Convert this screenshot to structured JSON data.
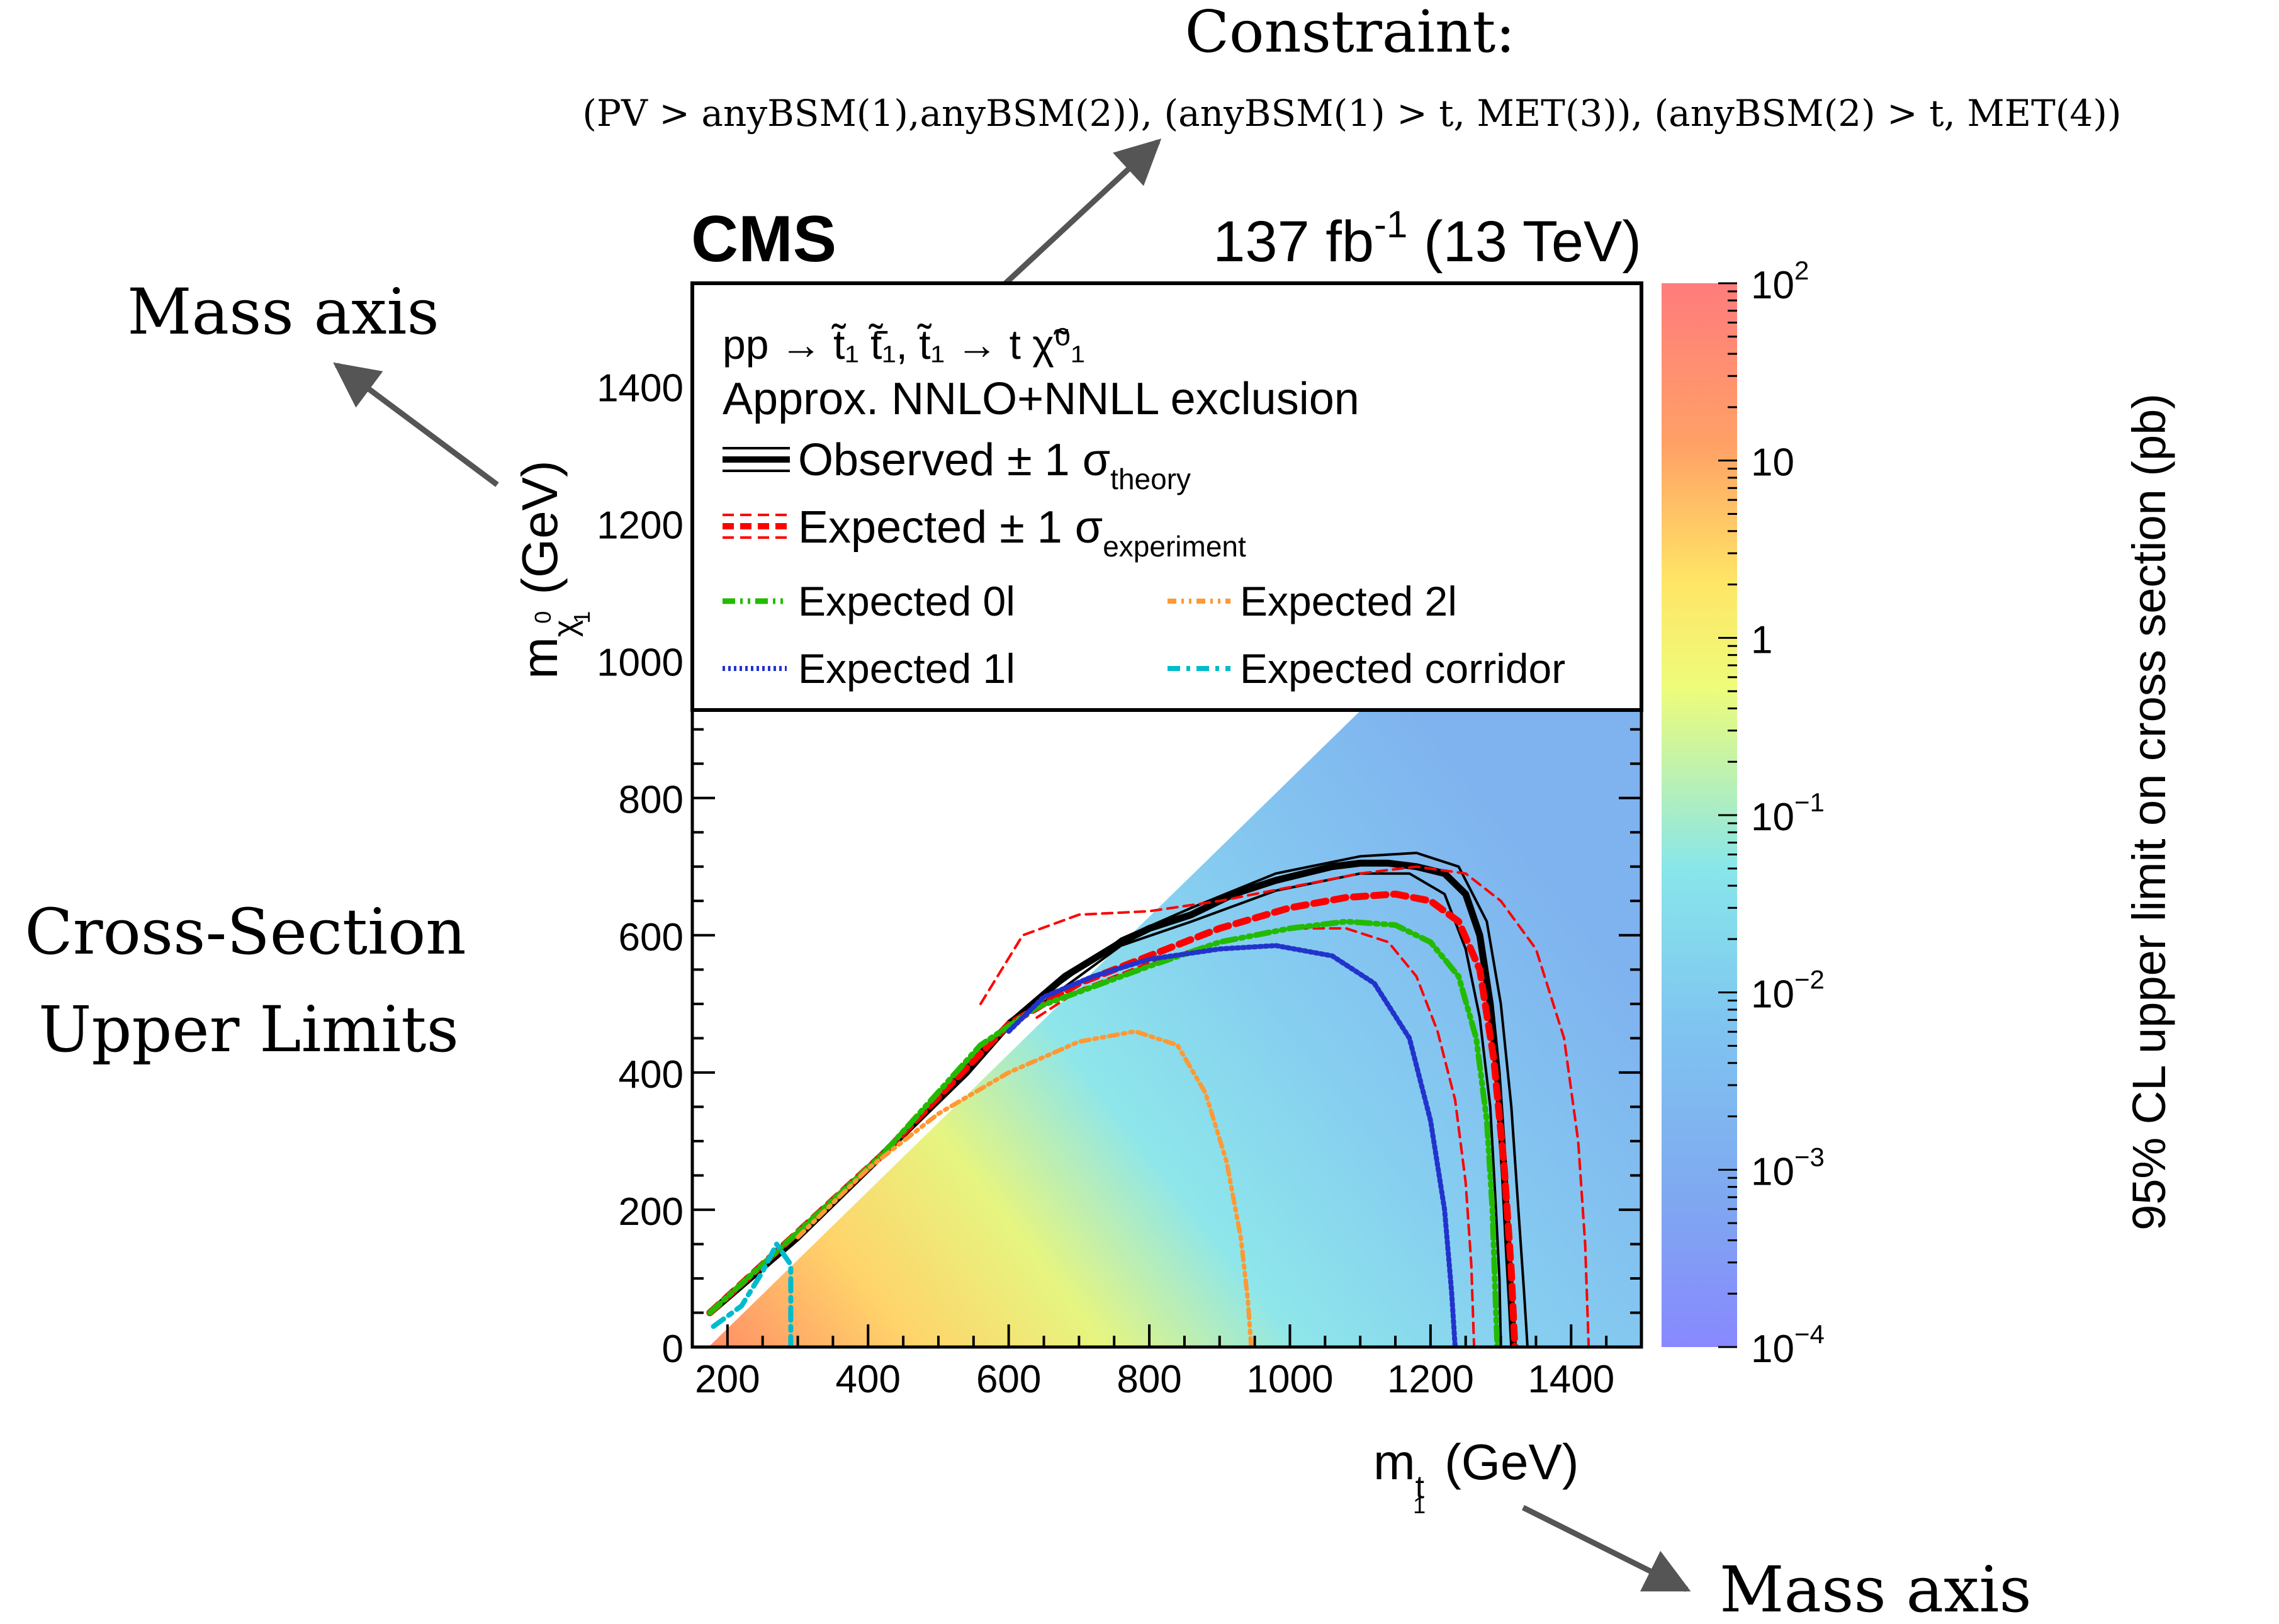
{
  "annotations": {
    "constraint_title": "Constraint:",
    "constraint_text": "(PV > anyBSM(1),anyBSM(2)), (anyBSM(1) > t, MET(3)), (anyBSM(2) > t, MET(4))",
    "mass_axis_y": "Mass axis",
    "mass_axis_x": "Mass axis",
    "cross_section_line1": "Cross-Section",
    "cross_section_line2": "Upper Limits"
  },
  "colors": {
    "arrow": "#555555",
    "observed": "#000000",
    "expected": "#ff0000",
    "expected_0l": "#22bb00",
    "expected_1l": "#2233cc",
    "expected_2l": "#ff9933",
    "expected_corridor": "#00bbcc"
  },
  "chart_data": {
    "type": "heatmap",
    "header_left": "CMS",
    "lumi_value": "137 fb",
    "lumi_exp": "-1",
    "lumi_energy": " (13 TeV)",
    "xlabel_main": "m",
    "xlabel_sub": "t",
    "xlabel_sub_index": "1",
    "xlabel_unit": "(GeV)",
    "ylabel_main": "m",
    "ylabel_sub": "χ",
    "ylabel_sub_sup": "0",
    "ylabel_sub_index": "1",
    "ylabel_unit": "(GeV)",
    "zlabel": "95% CL upper limit on cross section (pb)",
    "xlim": [
      150,
      1500
    ],
    "ylim": [
      0,
      1550
    ],
    "zlim": [
      0.0001,
      100
    ],
    "z_scale": "log",
    "xticks": [
      200,
      400,
      600,
      800,
      1000,
      1200,
      1400
    ],
    "yticks": [
      0,
      200,
      400,
      600,
      800,
      1000,
      1200,
      1400
    ],
    "zticks": [
      {
        "base": "10",
        "exp": "2",
        "value": 100
      },
      {
        "base": "10",
        "exp": "",
        "value": 10
      },
      {
        "base": "1",
        "exp": "",
        "value": 1
      },
      {
        "base": "10",
        "exp": "−1",
        "value": 0.1
      },
      {
        "base": "10",
        "exp": "−2",
        "value": 0.01
      },
      {
        "base": "10",
        "exp": "−3",
        "value": 0.001
      },
      {
        "base": "10",
        "exp": "−4",
        "value": 0.0001
      }
    ],
    "legend": {
      "process": "pp → t̃₁ t̃̄₁, t̃₁ → t χ̃⁰₁",
      "exclusion": "Approx. NNLO+NNLL exclusion",
      "observed_label": "Observed ± 1 σ",
      "observed_sub": "theory",
      "expected_label": "Expected ± 1 σ",
      "expected_sub": "experiment",
      "exp_0l": "Expected 0l",
      "exp_2l": "Expected 2l",
      "exp_1l": "Expected 1l",
      "exp_corridor": "Expected corridor",
      "placement": "top"
    },
    "contours": {
      "observed": {
        "x": [
          175,
          300,
          420,
          540,
          600,
          680,
          760,
          800,
          860,
          920,
          980,
          1020,
          1060,
          1100,
          1140,
          1180,
          1220,
          1250,
          1270,
          1285,
          1295,
          1305,
          1310,
          1315,
          1318
        ],
        "y": [
          50,
          160,
          280,
          400,
          470,
          540,
          590,
          610,
          630,
          660,
          680,
          690,
          700,
          705,
          705,
          700,
          690,
          660,
          600,
          500,
          400,
          250,
          150,
          60,
          0
        ]
      },
      "observed_up": {
        "x": [
          175,
          420,
          600,
          760,
          860,
          980,
          1100,
          1180,
          1240,
          1280,
          1300,
          1315,
          1325,
          1333,
          1338
        ],
        "y": [
          50,
          280,
          475,
          595,
          640,
          690,
          715,
          720,
          700,
          620,
          500,
          350,
          200,
          80,
          0
        ]
      },
      "observed_down": {
        "x": [
          175,
          420,
          600,
          760,
          860,
          980,
          1100,
          1170,
          1220,
          1250,
          1270,
          1285,
          1292,
          1298,
          1300
        ],
        "y": [
          50,
          280,
          465,
          585,
          620,
          665,
          690,
          690,
          660,
          580,
          480,
          350,
          220,
          100,
          0
        ]
      },
      "expected": {
        "x": [
          175,
          420,
          600,
          700,
          800,
          900,
          1000,
          1080,
          1150,
          1200,
          1240,
          1270,
          1290,
          1305,
          1315,
          1320
        ],
        "y": [
          50,
          280,
          470,
          530,
          570,
          610,
          640,
          655,
          660,
          650,
          620,
          550,
          420,
          260,
          110,
          0
        ]
      },
      "expected_up": {
        "x": [
          560,
          620,
          700,
          800,
          900,
          1000,
          1100,
          1180,
          1250,
          1300,
          1350,
          1390,
          1410,
          1420,
          1425
        ],
        "y": [
          500,
          600,
          630,
          635,
          650,
          670,
          690,
          700,
          690,
          650,
          580,
          450,
          300,
          150,
          0
        ]
      },
      "expected_down": {
        "x": [
          640,
          700,
          800,
          900,
          1000,
          1080,
          1140,
          1180,
          1210,
          1235,
          1250,
          1258,
          1262
        ],
        "y": [
          480,
          520,
          560,
          590,
          610,
          610,
          590,
          540,
          460,
          360,
          240,
          120,
          0
        ]
      },
      "exp_0l": {
        "x": [
          175,
          420,
          560,
          640,
          720,
          800,
          900,
          1000,
          1080,
          1150,
          1200,
          1240,
          1265,
          1280,
          1288,
          1292,
          1295
        ],
        "y": [
          50,
          280,
          440,
          495,
          525,
          555,
          590,
          610,
          620,
          615,
          590,
          540,
          450,
          330,
          200,
          80,
          0
        ]
      },
      "exp_1l": {
        "x": [
          600,
          650,
          720,
          800,
          900,
          980,
          1060,
          1120,
          1170,
          1200,
          1220,
          1230,
          1235
        ],
        "y": [
          460,
          510,
          540,
          565,
          580,
          585,
          570,
          530,
          450,
          330,
          200,
          80,
          0
        ]
      },
      "exp_2l": {
        "x": [
          300,
          400,
          500,
          600,
          700,
          780,
          840,
          880,
          910,
          930,
          940,
          945
        ],
        "y": [
          160,
          260,
          340,
          400,
          445,
          460,
          440,
          370,
          270,
          160,
          70,
          0
        ]
      },
      "exp_corridor": {
        "x": [
          180,
          220,
          250,
          270,
          290,
          290
        ],
        "y": [
          30,
          60,
          110,
          150,
          120,
          0
        ]
      }
    }
  }
}
